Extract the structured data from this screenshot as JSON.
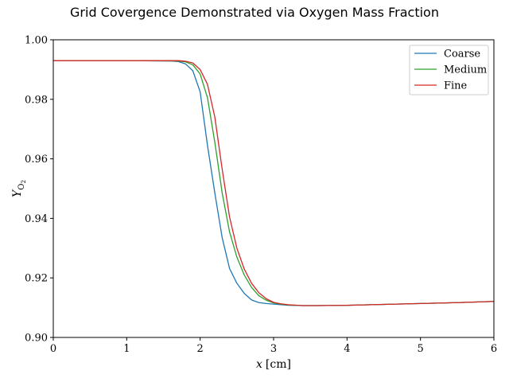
{
  "chart_data": {
    "type": "line",
    "title": "Grid Covergence Demonstrated via Oxygen Mass Fraction",
    "xlabel_var": "x",
    "xlabel_unit": "[cm]",
    "ylabel_var": "Y",
    "ylabel_sub": "O",
    "ylabel_sub2": "2",
    "xlim": [
      0,
      6
    ],
    "ylim": [
      0.9,
      1.0
    ],
    "xticks": [
      "0",
      "1",
      "2",
      "3",
      "4",
      "5",
      "6"
    ],
    "yticks": [
      "0.90",
      "0.92",
      "0.94",
      "0.96",
      "0.98",
      "1.00"
    ],
    "grid": false,
    "legend_position": "top-right",
    "series": [
      {
        "name": "Coarse",
        "color": "#1f77b4",
        "x": [
          0,
          1.0,
          1.6,
          1.7,
          1.8,
          1.9,
          2.0,
          2.1,
          2.2,
          2.3,
          2.4,
          2.5,
          2.6,
          2.7,
          2.8,
          2.9,
          3.0,
          3.1,
          3.2,
          3.4,
          3.6,
          4.0,
          4.5,
          5.0,
          5.5,
          6.0
        ],
        "y": [
          0.993,
          0.993,
          0.9929,
          0.9927,
          0.9919,
          0.9896,
          0.9825,
          0.9645,
          0.9485,
          0.9335,
          0.9232,
          0.9182,
          0.9148,
          0.9126,
          0.9117,
          0.9114,
          0.9112,
          0.911,
          0.9108,
          0.9107,
          0.9107,
          0.9108,
          0.9111,
          0.9114,
          0.9117,
          0.9121
        ]
      },
      {
        "name": "Medium",
        "color": "#2ca02c",
        "x": [
          0,
          1.0,
          1.7,
          1.8,
          1.9,
          2.0,
          2.1,
          2.2,
          2.3,
          2.4,
          2.5,
          2.6,
          2.7,
          2.8,
          2.9,
          3.0,
          3.1,
          3.2,
          3.4,
          3.6,
          4.0,
          4.5,
          5.0,
          5.5,
          6.0
        ],
        "y": [
          0.993,
          0.993,
          0.9929,
          0.9926,
          0.9916,
          0.9885,
          0.9805,
          0.9655,
          0.9485,
          0.9355,
          0.927,
          0.921,
          0.9168,
          0.914,
          0.9125,
          0.9116,
          0.9112,
          0.9109,
          0.9107,
          0.9107,
          0.9108,
          0.9111,
          0.9114,
          0.9117,
          0.9121
        ]
      },
      {
        "name": "Fine",
        "color": "#d62728",
        "x": [
          0,
          1.0,
          1.7,
          1.8,
          1.9,
          2.0,
          2.1,
          2.2,
          2.3,
          2.4,
          2.5,
          2.6,
          2.7,
          2.8,
          2.9,
          3.0,
          3.1,
          3.2,
          3.4,
          3.6,
          4.0,
          4.5,
          5.0,
          5.5,
          6.0
        ],
        "y": [
          0.993,
          0.993,
          0.993,
          0.9928,
          0.9922,
          0.99,
          0.985,
          0.974,
          0.9565,
          0.9405,
          0.93,
          0.923,
          0.9182,
          0.915,
          0.913,
          0.9118,
          0.9113,
          0.911,
          0.9107,
          0.9107,
          0.9108,
          0.9111,
          0.9114,
          0.9117,
          0.9121
        ]
      }
    ]
  }
}
